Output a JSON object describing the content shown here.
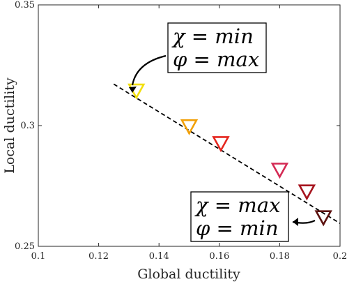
{
  "chart_data": {
    "type": "scatter",
    "title": "",
    "xlabel": "Global ductility",
    "ylabel": "Local ductility",
    "xlim": [
      0.1,
      0.2
    ],
    "ylim": [
      0.25,
      0.35
    ],
    "xticks": [
      "0.1",
      "0.12",
      "0.14",
      "0.16",
      "0.18",
      "0.2"
    ],
    "yticks": [
      "0.25",
      "0.3",
      "0.35"
    ],
    "grid": false,
    "points": [
      {
        "x": 0.1325,
        "y": 0.3143,
        "color": "#f2df0c"
      },
      {
        "x": 0.15,
        "y": 0.2995,
        "color": "#f2a007"
      },
      {
        "x": 0.1605,
        "y": 0.2925,
        "color": "#e5261e"
      },
      {
        "x": 0.18,
        "y": 0.2815,
        "color": "#d42a54"
      },
      {
        "x": 0.189,
        "y": 0.2725,
        "color": "#a6141e"
      },
      {
        "x": 0.1945,
        "y": 0.2618,
        "color": "#5c1210"
      }
    ],
    "trend_line": {
      "style": "dashed",
      "x": [
        0.125,
        0.2
      ],
      "y": [
        0.3172,
        0.2595
      ]
    },
    "annotations": [
      {
        "lines": [
          "χ = min",
          "φ = max"
        ],
        "points_to": {
          "x": 0.1325,
          "y": 0.3143
        }
      },
      {
        "lines": [
          "χ = max",
          "φ = min"
        ],
        "points_to": {
          "x": 0.1945,
          "y": 0.2618
        }
      }
    ]
  }
}
